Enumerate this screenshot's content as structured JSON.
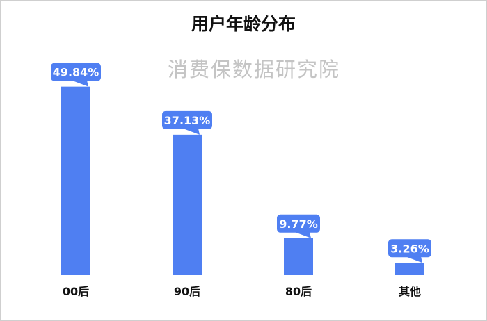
{
  "title": "用户年龄分布",
  "watermark": "消费保数据研究院",
  "colors": {
    "bar": "#4f7ff2",
    "label_box": "#4f7ff2",
    "label_text": "#ffffff",
    "category_text": "#111111",
    "watermark": "#c4c4c4"
  },
  "chart_data": {
    "type": "bar",
    "title": "用户年龄分布",
    "categories": [
      "00后",
      "90后",
      "80后",
      "其他"
    ],
    "values": [
      49.84,
      37.13,
      9.77,
      3.26
    ],
    "data_labels": [
      "49.84%",
      "37.13%",
      "9.77%",
      "3.26%"
    ],
    "ylim": [
      0,
      54
    ],
    "grid": false,
    "legend": "none"
  }
}
